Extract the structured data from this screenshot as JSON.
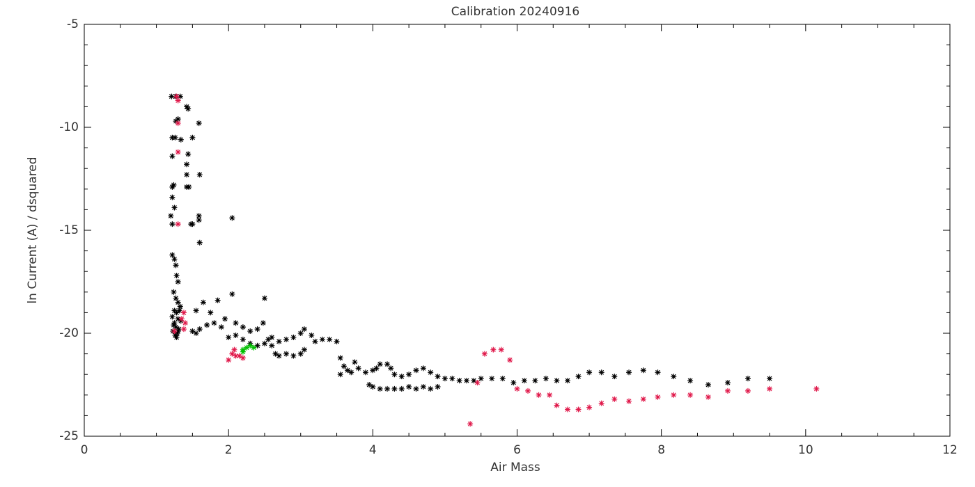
{
  "chart_data": {
    "type": "scatter",
    "title": "Calibration 20240916",
    "x_label": "Air Mass",
    "y_label": "ln Current (A) / dsquared",
    "xlim": [
      0,
      12
    ],
    "xticks": [
      0,
      2,
      4,
      6,
      8,
      10,
      12
    ],
    "ylim": [
      -25,
      -5
    ],
    "yticks": [
      -25,
      -20,
      -15,
      -10,
      -5
    ],
    "series": [
      {
        "color": "#000000",
        "x": [
          1.21,
          1.27,
          1.33,
          1.3,
          1.27,
          1.42,
          1.44,
          1.59,
          1.22,
          1.26,
          1.34,
          1.5,
          1.42,
          1.44,
          1.22,
          1.42,
          1.6,
          1.22,
          1.24,
          1.42,
          1.45,
          1.22,
          1.25,
          1.2,
          1.22,
          1.5,
          1.48,
          1.59,
          1.59,
          2.05,
          1.6,
          1.22,
          1.25,
          1.27,
          1.28,
          1.3,
          1.24,
          1.27,
          1.3,
          1.33,
          1.25,
          1.28,
          1.22,
          1.3,
          1.34,
          1.24,
          1.27,
          1.31,
          1.23,
          1.29,
          1.26,
          1.32,
          1.25,
          1.3,
          1.28,
          1.5,
          1.55,
          1.6,
          1.7,
          1.8,
          1.9,
          1.55,
          1.65,
          1.75,
          1.85,
          1.95,
          2.05,
          2.1,
          2.2,
          2.3,
          2.4,
          2.48,
          2.5,
          2.0,
          2.1,
          2.2,
          2.3,
          2.4,
          2.5,
          2.55,
          2.6,
          2.65,
          2.7,
          2.8,
          2.9,
          3.0,
          3.05,
          2.6,
          2.7,
          2.8,
          2.9,
          3.0,
          3.05,
          3.15,
          3.2,
          3.3,
          3.4,
          3.5,
          3.55,
          3.6,
          3.65,
          3.55,
          3.7,
          3.75,
          3.8,
          3.9,
          3.95,
          4.0,
          4.05,
          4.1,
          4.2,
          4.25,
          4.3,
          4.4,
          4.5,
          4.6,
          4.7,
          4.8,
          4.9,
          5.0,
          5.1,
          5.2,
          5.3,
          5.4,
          5.5,
          5.65,
          5.8,
          5.95,
          6.1,
          6.25,
          6.4,
          6.55,
          6.7,
          6.85,
          7.0,
          7.17,
          7.35,
          7.55,
          7.75,
          7.95,
          8.17,
          8.4,
          8.65,
          8.92,
          9.2,
          9.5,
          4.0,
          4.1,
          4.2,
          4.3,
          4.4,
          4.5,
          4.6,
          4.7,
          4.8,
          4.9
        ],
        "y": [
          -8.5,
          -8.5,
          -8.5,
          -9.6,
          -9.7,
          -9.0,
          -9.1,
          -9.8,
          -10.5,
          -10.5,
          -10.6,
          -10.5,
          -11.8,
          -11.3,
          -11.4,
          -12.3,
          -12.3,
          -12.9,
          -12.8,
          -12.9,
          -12.9,
          -13.4,
          -13.9,
          -14.3,
          -14.7,
          -14.7,
          -14.7,
          -14.5,
          -14.3,
          -14.4,
          -15.6,
          -16.2,
          -16.4,
          -16.7,
          -17.2,
          -17.5,
          -18.0,
          -18.3,
          -18.5,
          -18.7,
          -18.9,
          -19.0,
          -19.2,
          -19.3,
          -19.4,
          -19.6,
          -19.7,
          -19.8,
          -19.9,
          -20.0,
          -20.1,
          -18.9,
          -19.5,
          -19.9,
          -20.2,
          -19.9,
          -20.0,
          -19.8,
          -19.6,
          -19.5,
          -19.7,
          -18.9,
          -18.5,
          -19.0,
          -18.4,
          -19.3,
          -18.1,
          -19.5,
          -19.7,
          -19.9,
          -19.8,
          -19.5,
          -18.3,
          -20.2,
          -20.1,
          -20.3,
          -20.5,
          -20.6,
          -20.5,
          -20.3,
          -20.6,
          -21.0,
          -21.1,
          -21.0,
          -21.1,
          -21.0,
          -20.8,
          -20.2,
          -20.4,
          -20.3,
          -20.2,
          -20.0,
          -19.8,
          -20.1,
          -20.4,
          -20.3,
          -20.3,
          -20.4,
          -21.2,
          -21.6,
          -21.8,
          -22.0,
          -21.9,
          -21.4,
          -21.7,
          -21.9,
          -22.5,
          -21.8,
          -21.7,
          -21.5,
          -21.5,
          -21.7,
          -22.0,
          -22.1,
          -22.0,
          -21.8,
          -21.7,
          -21.9,
          -22.1,
          -22.2,
          -22.2,
          -22.3,
          -22.3,
          -22.3,
          -22.2,
          -22.2,
          -22.2,
          -22.4,
          -22.3,
          -22.3,
          -22.2,
          -22.3,
          -22.3,
          -22.1,
          -21.9,
          -21.9,
          -22.1,
          -21.9,
          -21.8,
          -21.9,
          -22.1,
          -22.3,
          -22.5,
          -22.4,
          -22.2,
          -22.2,
          -22.6,
          -22.7,
          -22.7,
          -22.7,
          -22.7,
          -22.6,
          -22.7,
          -22.6,
          -22.7,
          -22.6
        ]
      },
      {
        "color": "#e0184a",
        "x": [
          1.28,
          1.3,
          1.3,
          1.3,
          1.3,
          1.25,
          1.35,
          1.38,
          1.4,
          1.38,
          2.0,
          2.05,
          2.08,
          2.1,
          2.15,
          2.2,
          5.35,
          5.45,
          5.55,
          5.67,
          5.78,
          5.9,
          6.0,
          6.15,
          6.3,
          6.45,
          6.55,
          6.7,
          6.85,
          7.0,
          7.17,
          7.35,
          7.55,
          7.75,
          7.95,
          8.17,
          8.4,
          8.65,
          8.92,
          9.2,
          9.5,
          10.15
        ],
        "y": [
          -8.5,
          -8.7,
          -9.8,
          -11.2,
          -14.7,
          -19.9,
          -19.3,
          -19.0,
          -19.5,
          -19.8,
          -21.3,
          -21.0,
          -20.8,
          -21.1,
          -21.1,
          -21.2,
          -24.4,
          -22.4,
          -21.0,
          -20.8,
          -20.8,
          -21.3,
          -22.7,
          -22.8,
          -23.0,
          -23.0,
          -23.5,
          -23.7,
          -23.7,
          -23.6,
          -23.4,
          -23.2,
          -23.3,
          -23.2,
          -23.1,
          -23.0,
          -23.0,
          -23.1,
          -22.8,
          -22.8,
          -22.7,
          -22.7
        ]
      },
      {
        "color": "#00c000",
        "x": [
          2.2,
          2.25,
          2.3,
          2.35,
          2.2
        ],
        "y": [
          -20.8,
          -20.7,
          -20.6,
          -20.7,
          -20.9
        ]
      }
    ]
  }
}
